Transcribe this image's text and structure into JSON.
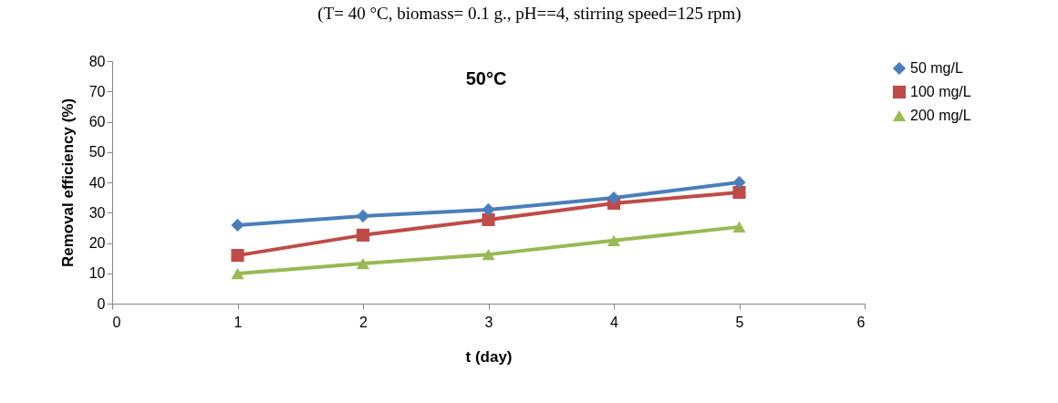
{
  "chart_data": {
    "type": "line",
    "title": "(T= 40 °C, biomass= 0.1 g., pH==4, stirring speed=125 rpm)",
    "annotations": [
      "50°C"
    ],
    "xlabel": "t (day)",
    "ylabel": "Removal efficiency  (%)",
    "x": [
      1,
      2,
      3,
      4,
      5
    ],
    "series": [
      {
        "name": "50 mg/L",
        "color": "#4a7ebb",
        "marker": "diamond",
        "values": [
          25.9,
          28.9,
          31,
          34.9,
          40
        ]
      },
      {
        "name": "100 mg/L",
        "color": "#be4b48",
        "marker": "square",
        "values": [
          15.9,
          22.6,
          27.7,
          33.1,
          36.7
        ]
      },
      {
        "name": "200 mg/L",
        "color": "#98b954",
        "marker": "triangle",
        "values": [
          9.9,
          13.2,
          16.2,
          20.8,
          25.3
        ]
      }
    ],
    "xlim": [
      0,
      6
    ],
    "xticks": [
      0,
      1,
      2,
      3,
      4,
      5,
      6
    ],
    "ylim": [
      0,
      80
    ],
    "yticks": [
      0,
      10,
      20,
      30,
      40,
      50,
      60,
      70,
      80
    ],
    "grid": false,
    "legend": "right",
    "line_style": "solid"
  }
}
